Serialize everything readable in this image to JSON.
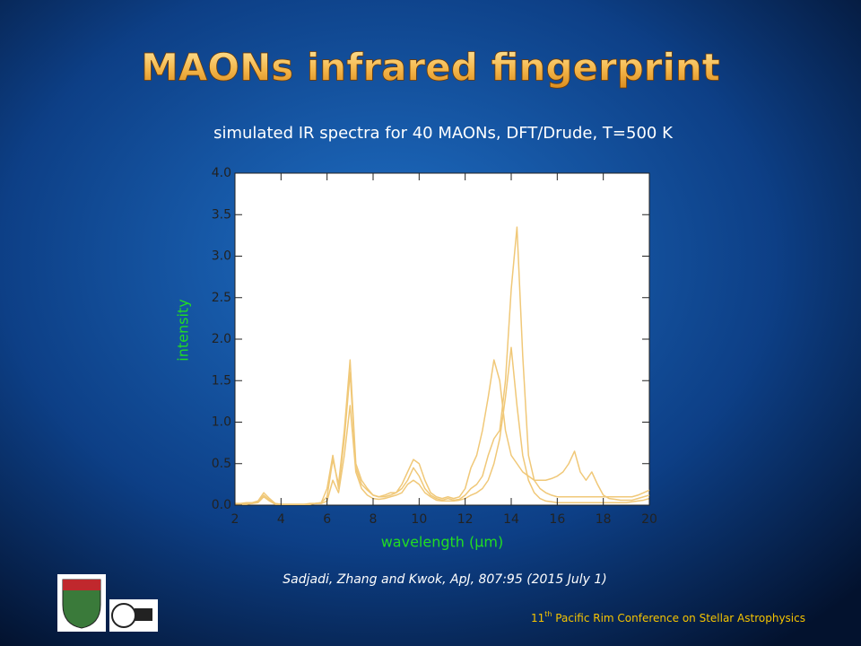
{
  "slide_title": "MAONs infrared fingerprint",
  "citation": "Sadjadi, Zhang and Kwok, ApJ, 807:95 (2015 July 1)",
  "footer": {
    "number": "11",
    "superscript": "th",
    "text": " Pacific Rim Conference on Stellar Astrophysics"
  },
  "chart_data": {
    "type": "line",
    "title": "simulated IR spectra for 40 MAONs, DFT/Drude, T=500 K",
    "x_label": "wavelength (µm)",
    "y_label": "intensity",
    "x": [
      2,
      2.25,
      2.5,
      2.75,
      3,
      3.25,
      3.5,
      3.75,
      4,
      4.25,
      4.5,
      4.75,
      5,
      5.25,
      5.5,
      5.75,
      6,
      6.25,
      6.5,
      6.75,
      7,
      7.25,
      7.5,
      7.75,
      8,
      8.25,
      8.5,
      8.75,
      9,
      9.25,
      9.5,
      9.75,
      10,
      10.25,
      10.5,
      10.75,
      11,
      11.25,
      11.5,
      11.75,
      12,
      12.25,
      12.5,
      12.75,
      13,
      13.25,
      13.5,
      13.75,
      14,
      14.25,
      14.5,
      14.75,
      15,
      15.25,
      15.5,
      15.75,
      16,
      16.25,
      16.5,
      16.75,
      17,
      17.25,
      17.5,
      17.75,
      18,
      18.25,
      18.5,
      18.75,
      19,
      19.25,
      19.5,
      19.75,
      20
    ],
    "series": [
      {
        "color": "#f0c878",
        "values": [
          0.02,
          0.02,
          0.03,
          0.03,
          0.05,
          0.15,
          0.08,
          0.02,
          0.01,
          0.01,
          0.01,
          0.01,
          0.01,
          0.02,
          0.02,
          0.03,
          0.1,
          0.55,
          0.25,
          0.9,
          1.75,
          0.5,
          0.3,
          0.2,
          0.12,
          0.1,
          0.12,
          0.15,
          0.15,
          0.2,
          0.3,
          0.45,
          0.35,
          0.2,
          0.12,
          0.08,
          0.06,
          0.08,
          0.06,
          0.07,
          0.12,
          0.2,
          0.25,
          0.35,
          0.6,
          0.8,
          0.9,
          1.5,
          2.6,
          3.35,
          1.8,
          0.6,
          0.3,
          0.2,
          0.15,
          0.12,
          0.1,
          0.1,
          0.1,
          0.1,
          0.1,
          0.1,
          0.1,
          0.1,
          0.1,
          0.1,
          0.1,
          0.1,
          0.1,
          0.1,
          0.12,
          0.15,
          0.18
        ]
      },
      {
        "color": "#f0c878",
        "values": [
          0.01,
          0.01,
          0.02,
          0.02,
          0.04,
          0.12,
          0.06,
          0.02,
          0.01,
          0.01,
          0.01,
          0.01,
          0.01,
          0.01,
          0.02,
          0.03,
          0.2,
          0.6,
          0.2,
          0.8,
          1.6,
          0.45,
          0.25,
          0.18,
          0.12,
          0.1,
          0.1,
          0.12,
          0.15,
          0.25,
          0.4,
          0.55,
          0.5,
          0.3,
          0.15,
          0.1,
          0.08,
          0.1,
          0.08,
          0.1,
          0.2,
          0.45,
          0.6,
          0.9,
          1.3,
          1.75,
          1.5,
          0.9,
          0.6,
          0.5,
          0.4,
          0.35,
          0.3,
          0.3,
          0.3,
          0.32,
          0.35,
          0.4,
          0.5,
          0.65,
          0.4,
          0.3,
          0.4,
          0.25,
          0.12,
          0.08,
          0.07,
          0.06,
          0.06,
          0.06,
          0.08,
          0.1,
          0.12
        ]
      },
      {
        "color": "#f0c878",
        "values": [
          0.01,
          0.01,
          0.01,
          0.02,
          0.03,
          0.1,
          0.05,
          0.01,
          0.01,
          0.01,
          0.01,
          0.01,
          0.01,
          0.01,
          0.02,
          0.02,
          0.05,
          0.3,
          0.15,
          0.6,
          1.2,
          0.4,
          0.2,
          0.12,
          0.08,
          0.07,
          0.08,
          0.1,
          0.12,
          0.15,
          0.25,
          0.3,
          0.25,
          0.15,
          0.1,
          0.06,
          0.05,
          0.05,
          0.05,
          0.06,
          0.08,
          0.12,
          0.15,
          0.2,
          0.3,
          0.5,
          0.8,
          1.3,
          1.9,
          1.2,
          0.6,
          0.3,
          0.15,
          0.08,
          0.05,
          0.04,
          0.03,
          0.03,
          0.03,
          0.03,
          0.03,
          0.03,
          0.03,
          0.03,
          0.03,
          0.03,
          0.03,
          0.03,
          0.03,
          0.04,
          0.05,
          0.06,
          0.08
        ]
      }
    ],
    "xlim": [
      2,
      20
    ],
    "xticks": [
      2,
      4,
      6,
      8,
      10,
      12,
      14,
      16,
      18,
      20
    ],
    "ylim": [
      0,
      4
    ],
    "yticks": [
      {
        "value": 0,
        "label": "0.0"
      },
      0.5,
      {
        "value": 1,
        "label": "1.0"
      },
      1.5,
      {
        "value": 2,
        "label": "2.0"
      },
      2.5,
      {
        "value": 3,
        "label": "3.0"
      },
      3.5,
      {
        "value": 4,
        "label": "4.0"
      }
    ]
  }
}
